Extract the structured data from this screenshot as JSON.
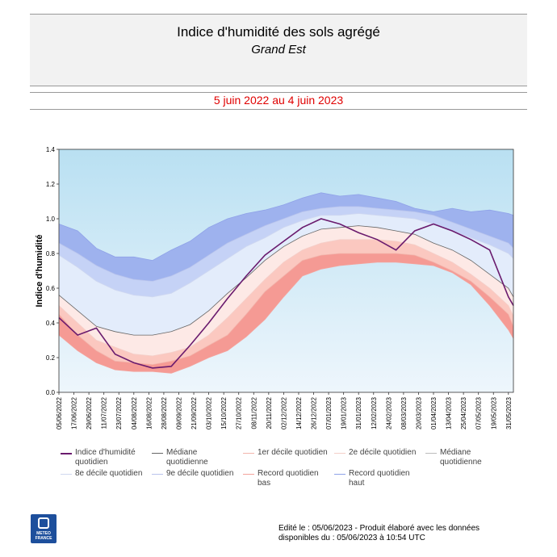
{
  "header": {
    "title": "Indice d'humidité des sols agrégé",
    "subtitle": "Grand Est"
  },
  "period": "5 juin 2022 au 4 juin 2023",
  "footer": {
    "line1": "Edité le : 05/06/2023 - Produit élaboré avec les données",
    "line2": "disponibles du : 05/06/2023 à 10:54 UTC"
  },
  "logo": {
    "line1": "METEO",
    "line2": "FRANCE"
  },
  "colors": {
    "bg_top": "#b9e0f2",
    "bg_bottom": "#eef6fc",
    "record_low": "#f59a94",
    "d1_d2": "#fbc8c0",
    "d2_med": "#fde9e6",
    "med_d8": "#e3ecfb",
    "d8_d9": "#c5d2f6",
    "d9_rec": "#9eb2ee",
    "indice": "#6a1b6e"
  },
  "legend": [
    {
      "label": "Indice d'humidité quotidien",
      "color": "#6a1b6e"
    },
    {
      "label": "Médiane quotidienne",
      "color": "#666666"
    },
    {
      "label": "1er décile quotidien",
      "color": "#f2b5ac"
    },
    {
      "label": "2e décile quotidien",
      "color": "#f4cfc9"
    },
    {
      "label": "Médiane quotidienne",
      "color": "#bbbbbb"
    },
    {
      "label": "8e décile quotidien",
      "color": "#d0d8f0"
    },
    {
      "label": "9e décile quotidien",
      "color": "#b9c4ec"
    },
    {
      "label": "Record quotidien bas",
      "color": "#f4a39c"
    },
    {
      "label": "Record quotidien haut",
      "color": "#8fa2e8"
    }
  ],
  "chart_data": {
    "type": "area",
    "ylabel": "Indice d'humidité",
    "ylim": [
      0.0,
      1.4
    ],
    "yticks": [
      "0.0",
      "0.2",
      "0.4",
      "0.6",
      "0.8",
      "1.0",
      "1.2",
      "1.4"
    ],
    "xlim": [
      "2022-06-05",
      "2023-06-04"
    ],
    "x": [
      "2022-06-05",
      "2022-06-20",
      "2022-07-05",
      "2022-07-20",
      "2022-08-04",
      "2022-08-19",
      "2022-09-03",
      "2022-09-18",
      "2022-10-03",
      "2022-10-18",
      "2022-11-02",
      "2022-11-17",
      "2022-12-02",
      "2022-12-17",
      "2023-01-01",
      "2023-01-16",
      "2023-01-31",
      "2023-02-15",
      "2023-03-02",
      "2023-03-17",
      "2023-04-01",
      "2023-04-16",
      "2023-05-01",
      "2023-05-16",
      "2023-05-31",
      "2023-06-04"
    ],
    "xticks": [
      "05/06/2022",
      "17/06/2022",
      "29/06/2022",
      "11/07/2022",
      "23/07/2022",
      "04/08/2022",
      "16/08/2022",
      "28/08/2022",
      "09/09/2022",
      "21/09/2022",
      "03/10/2022",
      "15/10/2022",
      "27/10/2022",
      "08/11/2022",
      "20/11/2022",
      "02/12/2022",
      "14/12/2022",
      "26/12/2022",
      "07/01/2023",
      "19/01/2023",
      "31/01/2023",
      "12/02/2023",
      "24/02/2023",
      "08/03/2023",
      "20/03/2023",
      "01/04/2023",
      "13/04/2023",
      "25/04/2023",
      "07/05/2023",
      "19/05/2023",
      "31/05/2023"
    ],
    "series": [
      {
        "name": "Record quotidien bas",
        "values": [
          0.33,
          0.24,
          0.17,
          0.13,
          0.12,
          0.12,
          0.11,
          0.15,
          0.2,
          0.24,
          0.32,
          0.42,
          0.55,
          0.67,
          0.71,
          0.73,
          0.74,
          0.75,
          0.75,
          0.74,
          0.73,
          0.69,
          0.62,
          0.5,
          0.36,
          0.31
        ]
      },
      {
        "name": "1er décile quotidien",
        "values": [
          0.45,
          0.33,
          0.24,
          0.18,
          0.17,
          0.16,
          0.18,
          0.21,
          0.27,
          0.33,
          0.45,
          0.58,
          0.67,
          0.76,
          0.79,
          0.8,
          0.8,
          0.8,
          0.8,
          0.79,
          0.75,
          0.7,
          0.64,
          0.55,
          0.45,
          0.38
        ]
      },
      {
        "name": "2e décile quotidien",
        "values": [
          0.5,
          0.4,
          0.3,
          0.26,
          0.22,
          0.21,
          0.23,
          0.26,
          0.33,
          0.43,
          0.54,
          0.65,
          0.75,
          0.82,
          0.86,
          0.88,
          0.88,
          0.88,
          0.87,
          0.85,
          0.8,
          0.75,
          0.68,
          0.6,
          0.5,
          0.44
        ]
      },
      {
        "name": "Médiane quotidienne",
        "values": [
          0.56,
          0.47,
          0.38,
          0.35,
          0.33,
          0.33,
          0.35,
          0.39,
          0.47,
          0.57,
          0.66,
          0.76,
          0.84,
          0.9,
          0.94,
          0.95,
          0.96,
          0.95,
          0.93,
          0.91,
          0.86,
          0.82,
          0.76,
          0.68,
          0.6,
          0.55
        ]
      },
      {
        "name": "8e décile quotidien",
        "values": [
          0.79,
          0.72,
          0.64,
          0.59,
          0.56,
          0.55,
          0.57,
          0.63,
          0.7,
          0.77,
          0.84,
          0.89,
          0.95,
          0.99,
          1.02,
          1.02,
          1.03,
          1.02,
          1.01,
          1.0,
          0.97,
          0.93,
          0.89,
          0.85,
          0.8,
          0.77
        ]
      },
      {
        "name": "9e décile quotidien",
        "values": [
          0.86,
          0.8,
          0.73,
          0.68,
          0.65,
          0.64,
          0.67,
          0.72,
          0.79,
          0.86,
          0.91,
          0.96,
          1.0,
          1.04,
          1.06,
          1.07,
          1.07,
          1.06,
          1.05,
          1.04,
          1.02,
          0.98,
          0.94,
          0.9,
          0.86,
          0.83
        ]
      },
      {
        "name": "Record quotidien haut",
        "values": [
          0.97,
          0.93,
          0.83,
          0.78,
          0.78,
          0.76,
          0.82,
          0.87,
          0.95,
          1.0,
          1.03,
          1.05,
          1.08,
          1.12,
          1.15,
          1.13,
          1.14,
          1.12,
          1.1,
          1.06,
          1.04,
          1.06,
          1.04,
          1.05,
          1.03,
          1.02
        ]
      },
      {
        "name": "Indice d'humidité quotidien",
        "values": [
          0.43,
          0.33,
          0.37,
          0.22,
          0.17,
          0.14,
          0.15,
          0.27,
          0.4,
          0.54,
          0.67,
          0.79,
          0.87,
          0.95,
          1.0,
          0.97,
          0.92,
          0.88,
          0.82,
          0.93,
          0.97,
          0.93,
          0.88,
          0.82,
          0.55,
          0.5
        ]
      }
    ]
  }
}
